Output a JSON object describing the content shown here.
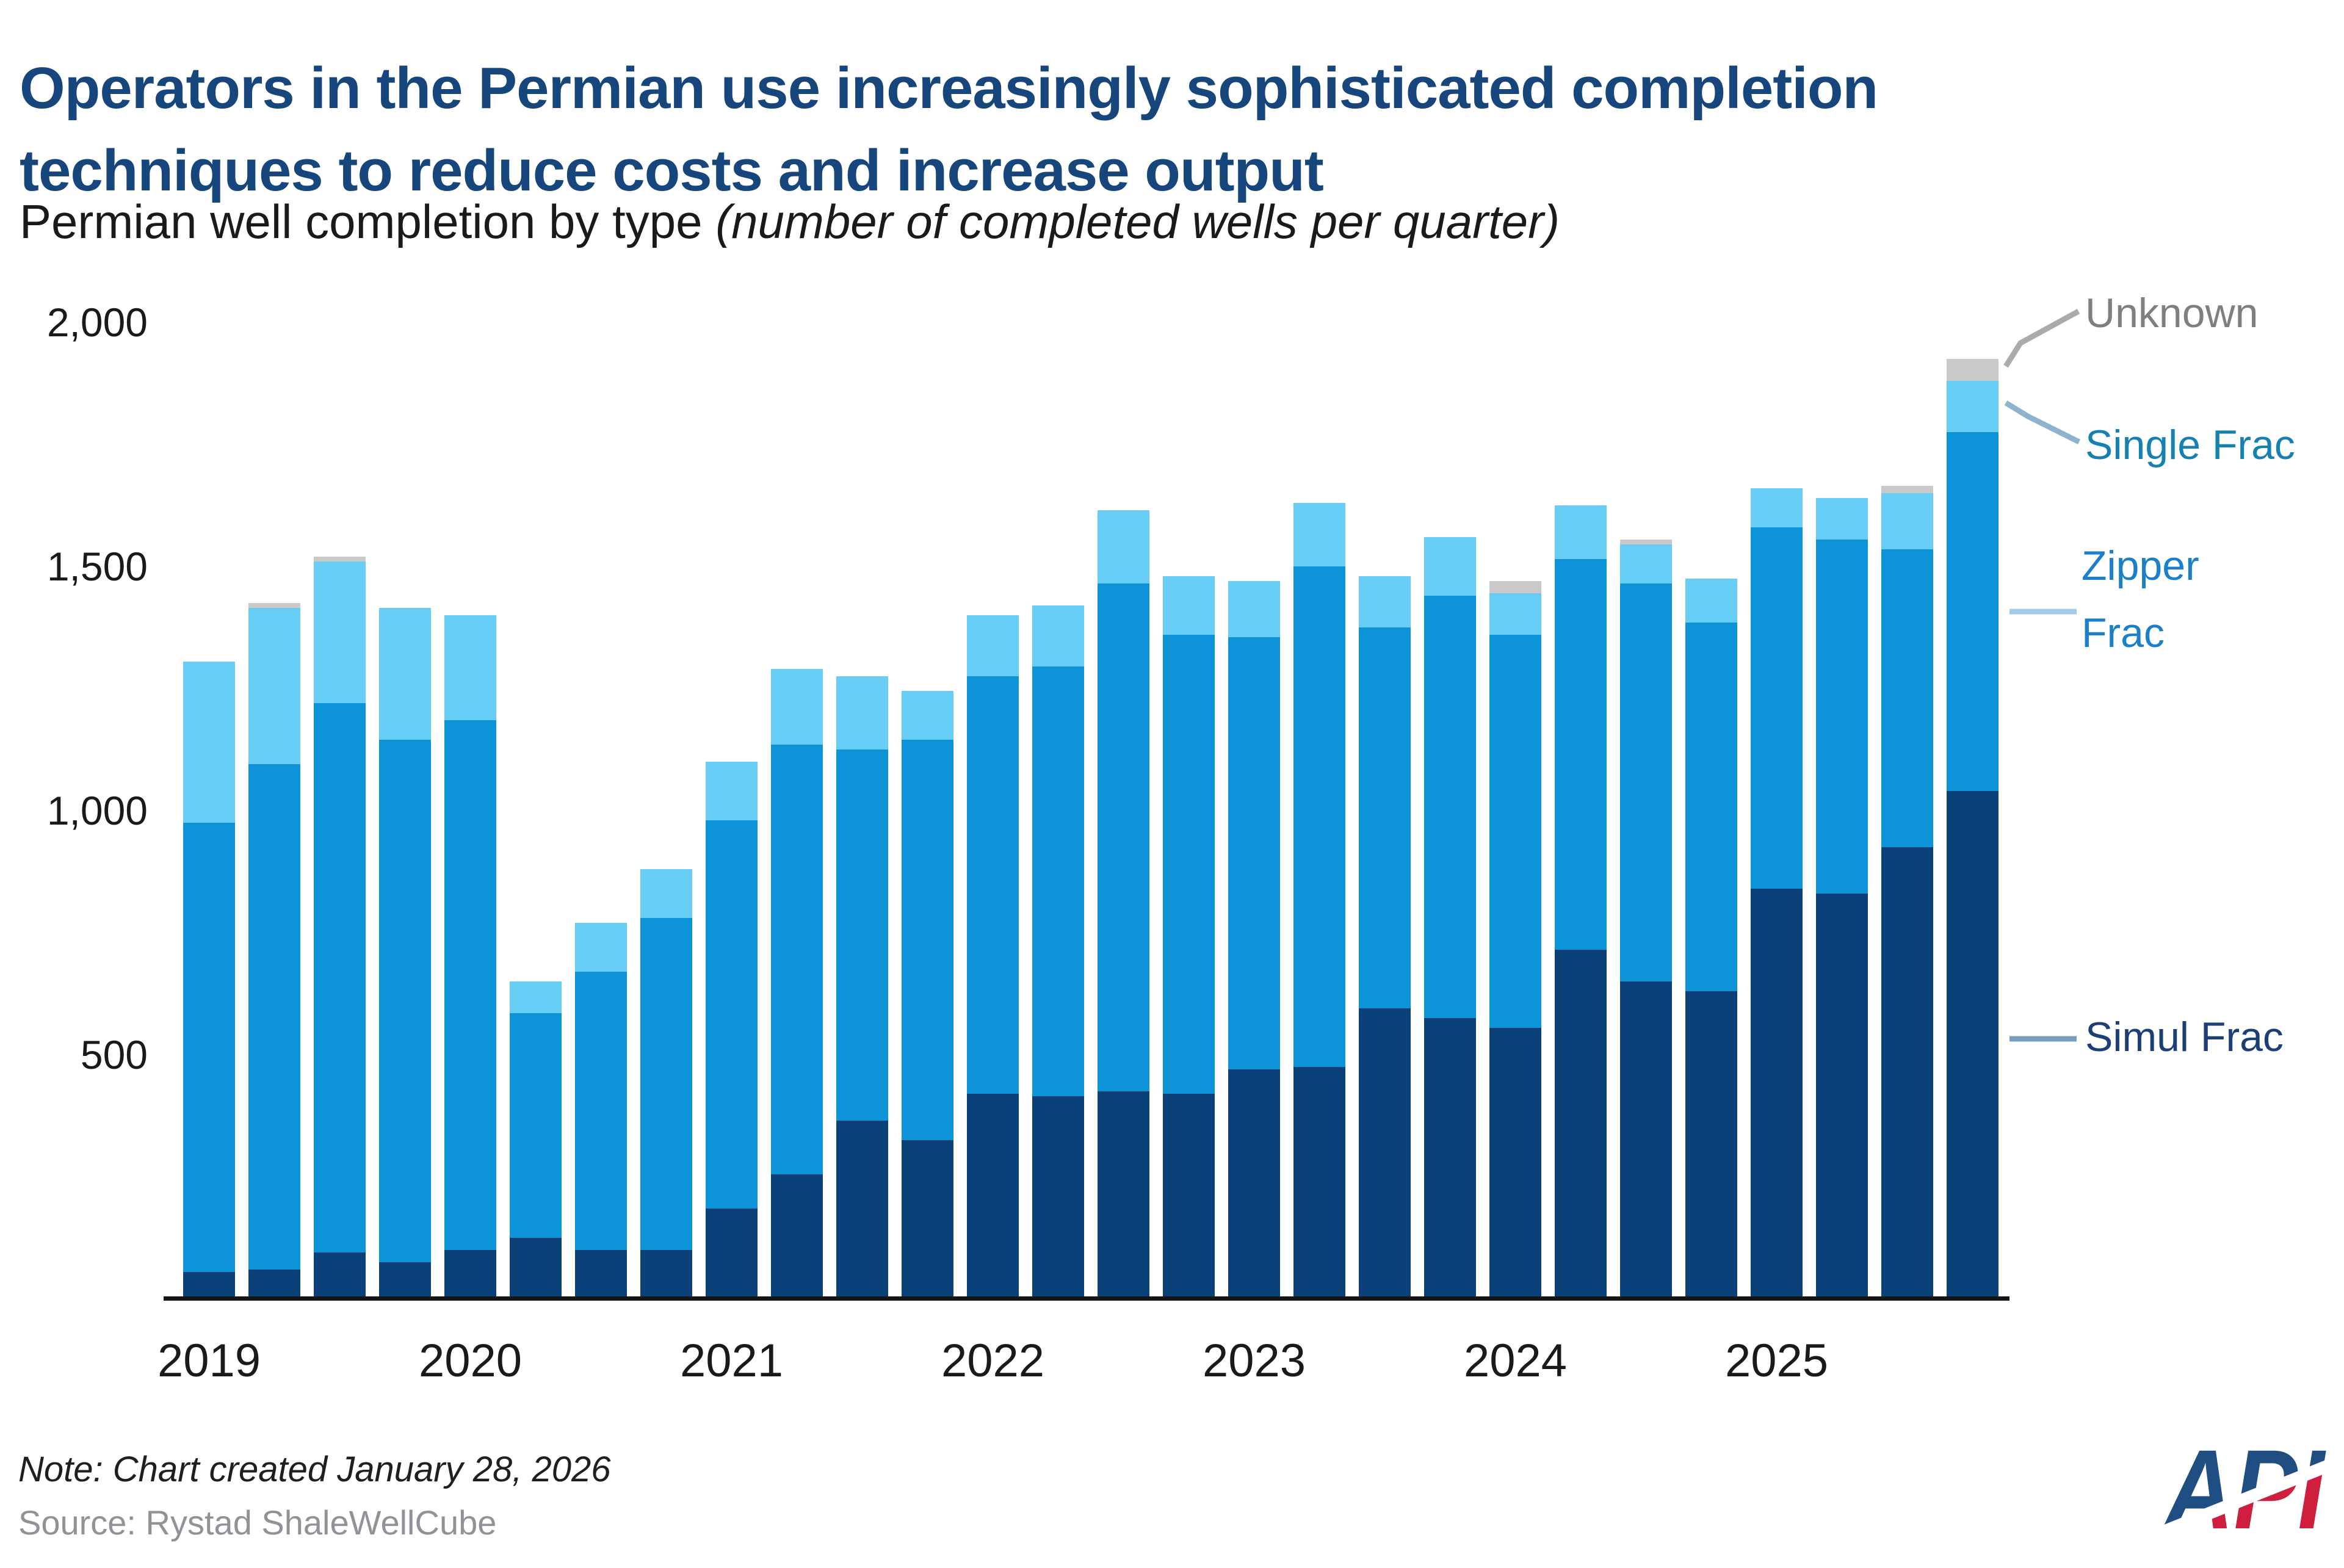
{
  "header": {
    "title_line1": "Operators in the Permian use increasingly sophisticated completion",
    "title_line2": "techniques to reduce costs and increase output",
    "subtitle_plain": "Permian well completion by type ",
    "subtitle_italic": "(number of completed wells per quarter)"
  },
  "chart_data": {
    "type": "bar",
    "stacked": true,
    "title": "Permian well completion by type",
    "ylabel": "number of completed wells per quarter",
    "ylim": [
      0,
      2000
    ],
    "yticks": [
      500,
      1000,
      1500,
      2000
    ],
    "ytick_labels": [
      "500",
      "1,000",
      "1,500",
      "2,000"
    ],
    "grid": false,
    "legend_position": "right",
    "x": [
      "2019 Q1",
      "2019 Q2",
      "2019 Q3",
      "2019 Q4",
      "2020 Q1",
      "2020 Q2",
      "2020 Q3",
      "2020 Q4",
      "2021 Q1",
      "2021 Q2",
      "2021 Q3",
      "2021 Q4",
      "2022 Q1",
      "2022 Q2",
      "2022 Q3",
      "2022 Q4",
      "2023 Q1",
      "2023 Q2",
      "2023 Q3",
      "2023 Q4",
      "2024 Q1",
      "2024 Q2",
      "2024 Q3",
      "2024 Q4",
      "2025 Q1",
      "2025 Q2",
      "2025 Q3",
      "2025 Q4"
    ],
    "year_labels": [
      "2019",
      "2020",
      "2021",
      "2022",
      "2023",
      "2024",
      "2025"
    ],
    "series": [
      {
        "name": "Simul Frac",
        "color": "#0a4178",
        "values": [
          55,
          60,
          95,
          75,
          100,
          125,
          100,
          100,
          185,
          255,
          365,
          325,
          420,
          415,
          425,
          420,
          470,
          475,
          595,
          575,
          555,
          715,
          650,
          630,
          840,
          830,
          925,
          1040
        ]
      },
      {
        "name": "Zipper Frac",
        "color": "#0d94d8",
        "values": [
          920,
          1035,
          1125,
          1070,
          1085,
          460,
          570,
          680,
          795,
          880,
          760,
          820,
          855,
          880,
          1040,
          940,
          885,
          1025,
          780,
          865,
          805,
          800,
          815,
          755,
          740,
          725,
          610,
          735
        ]
      },
      {
        "name": "Single Frac",
        "color": "#67cdf5",
        "values": [
          330,
          320,
          290,
          270,
          215,
          65,
          100,
          100,
          120,
          155,
          150,
          100,
          125,
          125,
          150,
          120,
          115,
          130,
          105,
          120,
          85,
          110,
          80,
          90,
          80,
          85,
          115,
          105
        ]
      },
      {
        "name": "Unknown",
        "color": "#c9c9c9",
        "values": [
          0,
          10,
          10,
          0,
          0,
          0,
          0,
          0,
          0,
          0,
          0,
          0,
          0,
          0,
          0,
          0,
          0,
          0,
          0,
          0,
          25,
          0,
          10,
          0,
          0,
          0,
          15,
          45
        ]
      }
    ]
  },
  "legend": {
    "items": [
      {
        "label": "Unknown",
        "color": "#7f7f7f"
      },
      {
        "label": "Single Frac",
        "color": "#1581b2"
      },
      {
        "label": "Zipper Frac",
        "color": "#1c7fc9"
      },
      {
        "label": "Simul Frac",
        "color": "#1c3f77"
      }
    ]
  },
  "footer": {
    "note": "Note: Chart created January 28, 2026",
    "source": "Source: Rystad ShaleWellCube"
  },
  "logo": {
    "text": "API"
  }
}
